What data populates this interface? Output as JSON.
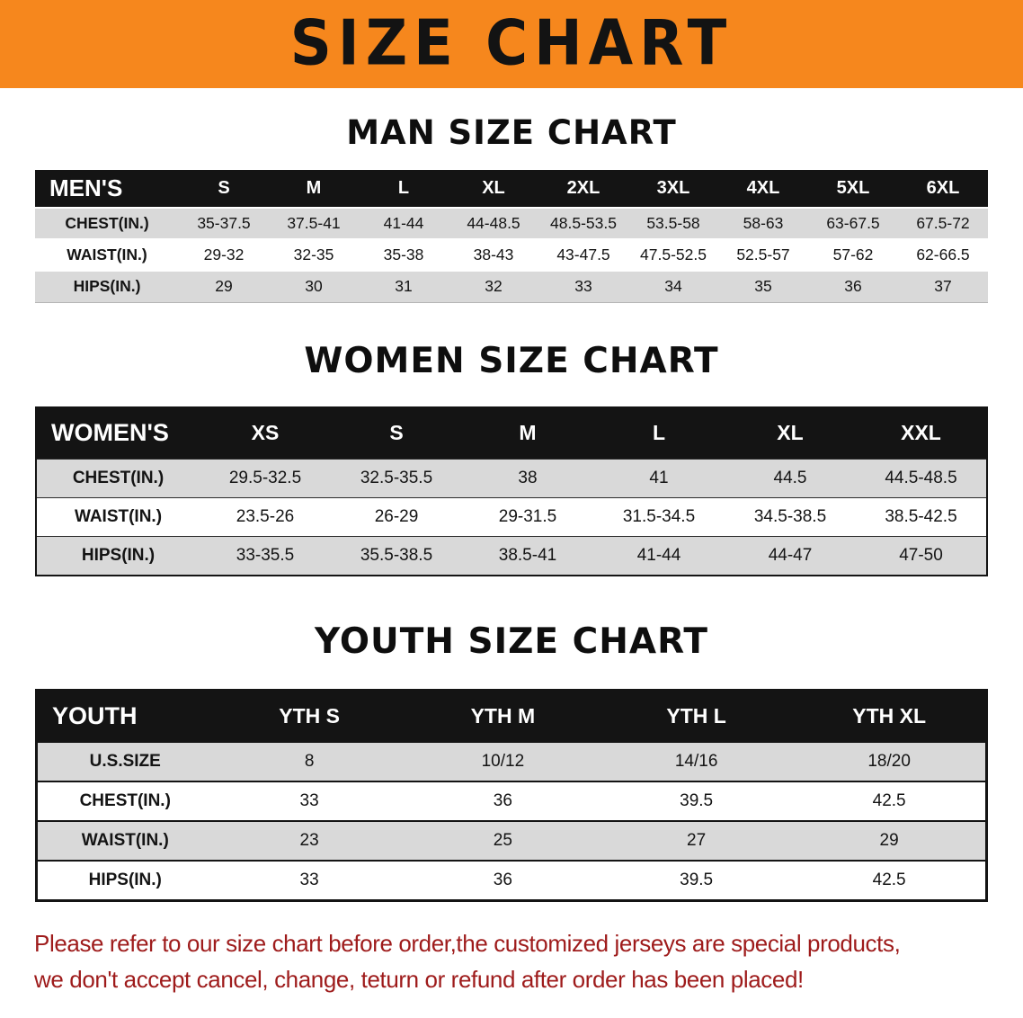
{
  "banner": {
    "title": "SIZE CHART",
    "bg_color": "#F6871D",
    "text_color": "#131313"
  },
  "sections": [
    {
      "id": "men",
      "heading": "MAN SIZE CHART",
      "table": {
        "header": [
          "MEN'S",
          "S",
          "M",
          "L",
          "XL",
          "2XL",
          "3XL",
          "4XL",
          "5XL",
          "6XL"
        ],
        "rows": [
          [
            "CHEST(IN.)",
            "35-37.5",
            "37.5-41",
            "41-44",
            "44-48.5",
            "48.5-53.5",
            "53.5-58",
            "58-63",
            "63-67.5",
            "67.5-72"
          ],
          [
            "WAIST(IN.)",
            "29-32",
            "32-35",
            "35-38",
            "38-43",
            "43-47.5",
            "47.5-52.5",
            "52.5-57",
            "57-62",
            "62-66.5"
          ],
          [
            "HIPS(IN.)",
            "29",
            "30",
            "31",
            "32",
            "33",
            "34",
            "35",
            "36",
            "37"
          ]
        ]
      }
    },
    {
      "id": "women",
      "heading": "WOMEN SIZE CHART",
      "table": {
        "header": [
          "WOMEN'S",
          "XS",
          "S",
          "M",
          "L",
          "XL",
          "XXL"
        ],
        "rows": [
          [
            "CHEST(IN.)",
            "29.5-32.5",
            "32.5-35.5",
            "38",
            "41",
            "44.5",
            "44.5-48.5"
          ],
          [
            "WAIST(IN.)",
            "23.5-26",
            "26-29",
            "29-31.5",
            "31.5-34.5",
            "34.5-38.5",
            "38.5-42.5"
          ],
          [
            "HIPS(IN.)",
            "33-35.5",
            "35.5-38.5",
            "38.5-41",
            "41-44",
            "44-47",
            "47-50"
          ]
        ]
      }
    },
    {
      "id": "youth",
      "heading": "YOUTH SIZE CHART",
      "table": {
        "header": [
          "YOUTH",
          "YTH S",
          "YTH M",
          "YTH L",
          "YTH XL"
        ],
        "rows": [
          [
            "U.S.SIZE",
            "8",
            "10/12",
            "14/16",
            "18/20"
          ],
          [
            "CHEST(IN.)",
            "33",
            "36",
            "39.5",
            "42.5"
          ],
          [
            "WAIST(IN.)",
            "23",
            "25",
            "27",
            "29"
          ],
          [
            "HIPS(IN.)",
            "33",
            "36",
            "39.5",
            "42.5"
          ]
        ]
      }
    }
  ],
  "disclaimer": {
    "color": "#9E1B1B",
    "lines": [
      "Please refer to our size chart before order,the customized jerseys are special products,",
      "we don't accept cancel, change, teturn or refund after order has been placed!"
    ]
  }
}
